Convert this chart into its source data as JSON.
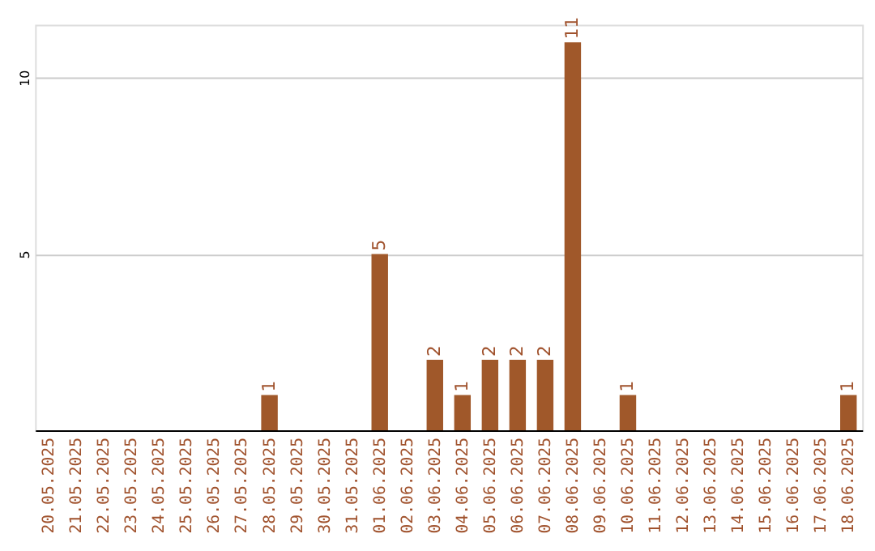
{
  "chart_data": {
    "type": "bar",
    "categories": [
      "20.05.2025",
      "21.05.2025",
      "22.05.2025",
      "23.05.2025",
      "24.05.2025",
      "25.05.2025",
      "26.05.2025",
      "27.05.2025",
      "28.05.2025",
      "29.05.2025",
      "30.05.2025",
      "31.05.2025",
      "01.06.2025",
      "02.06.2025",
      "03.06.2025",
      "04.06.2025",
      "05.06.2025",
      "06.06.2025",
      "07.06.2025",
      "08.06.2025",
      "09.06.2025",
      "10.06.2025",
      "11.06.2025",
      "12.06.2025",
      "13.06.2025",
      "14.06.2025",
      "15.06.2025",
      "16.06.2025",
      "17.06.2025",
      "18.06.2025"
    ],
    "values": [
      0,
      0,
      0,
      0,
      0,
      0,
      0,
      0,
      1,
      0,
      0,
      0,
      5,
      0,
      2,
      1,
      2,
      2,
      2,
      11,
      0,
      1,
      0,
      0,
      0,
      0,
      0,
      0,
      0,
      1
    ],
    "value_labels": [
      null,
      null,
      null,
      null,
      null,
      null,
      null,
      null,
      "1",
      null,
      null,
      null,
      "5",
      null,
      "2",
      "1",
      "2",
      "2",
      "2",
      "11",
      null,
      "1",
      null,
      null,
      null,
      null,
      null,
      null,
      null,
      "1"
    ],
    "color": "#a0582a",
    "ylim": [
      0,
      11.5
    ],
    "yticks": [
      5,
      10
    ],
    "grid": "y"
  }
}
